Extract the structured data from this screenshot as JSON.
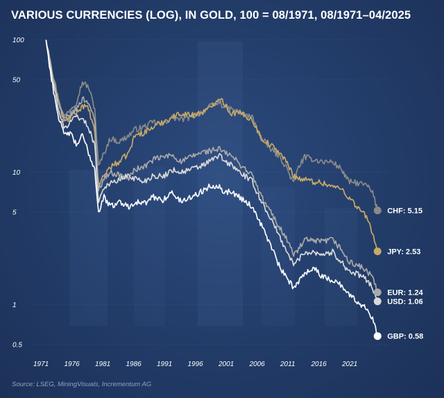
{
  "title": "VARIOUS CURRENCIES (LOG), IN GOLD, 100 = 08/1971, 08/1971–04/2025",
  "source": "Source: LSEG, MiningVisuals, Incrementum AG",
  "chart_data": {
    "type": "line",
    "title": "VARIOUS CURRENCIES (LOG), IN GOLD, 100 = 08/1971, 08/1971–04/2025",
    "y_scale": "log",
    "ylim": [
      0.4,
      110
    ],
    "xlim": [
      1971.0,
      2025.5
    ],
    "y_ticks": [
      100,
      50,
      10,
      5,
      1,
      0.5
    ],
    "y_tick_labels": [
      "100",
      "50",
      "10",
      "5",
      "1",
      "0.5"
    ],
    "x_ticks": [
      1971,
      1976,
      1981,
      1986,
      1991,
      1996,
      2001,
      2006,
      2011,
      2016,
      2021
    ],
    "x_tick_labels": [
      "1971",
      "1976",
      "1981",
      "1986",
      "1991",
      "1996",
      "2001",
      "2006",
      "2011",
      "2016",
      "2021"
    ],
    "legend": "end-of-line labels",
    "series": [
      {
        "name": "CHF",
        "label": "CHF: 5.15",
        "color": "#8a8a8a",
        "final": 5.15,
        "x": [
          1971.6,
          1972.5,
          1973.5,
          1974.5,
          1975.5,
          1976.5,
          1977.5,
          1978.5,
          1979.5,
          1980.1,
          1981.0,
          1982.0,
          1983.5,
          1985.0,
          1986.0,
          1987.5,
          1989.0,
          1990.5,
          1992.0,
          1993.5,
          1995.0,
          1996.5,
          1998.0,
          1999.7,
          2000.5,
          2001.5,
          2003.0,
          2005.0,
          2006.5,
          2008.0,
          2009.5,
          2010.5,
          2011.7,
          2012.5,
          2013.5,
          2015.0,
          2016.5,
          2018.0,
          2019.5,
          2020.6,
          2022.0,
          2023.5,
          2024.5,
          2025.3
        ],
        "values": [
          100,
          62,
          38,
          26,
          30,
          34,
          48,
          44,
          30,
          11,
          14,
          18,
          17,
          19,
          21,
          22,
          24,
          23,
          26,
          25,
          26,
          28,
          31,
          34,
          31,
          30,
          28,
          26,
          18,
          15,
          13,
          11,
          8.2,
          11,
          13,
          12.5,
          12,
          12,
          10.5,
          8.5,
          8.3,
          8.0,
          7.0,
          5.15
        ]
      },
      {
        "name": "JPY",
        "label": "JPY: 2.53",
        "color": "#c9a968",
        "final": 2.53,
        "x": [
          1971.6,
          1972.5,
          1973.5,
          1974.5,
          1975.5,
          1976.5,
          1977.5,
          1978.5,
          1979.5,
          1980.1,
          1981.0,
          1982.0,
          1983.5,
          1985.0,
          1986.0,
          1987.5,
          1989.0,
          1990.5,
          1992.0,
          1993.5,
          1995.0,
          1996.5,
          1998.0,
          1999.7,
          2000.5,
          2001.5,
          2003.0,
          2005.0,
          2006.5,
          2008.0,
          2009.5,
          2010.5,
          2011.7,
          2012.5,
          2013.5,
          2015.0,
          2016.5,
          2018.0,
          2019.5,
          2020.6,
          2022.0,
          2023.5,
          2024.5,
          2025.3
        ],
        "values": [
          100,
          58,
          36,
          24,
          26,
          28,
          32,
          30,
          20,
          8.0,
          9.5,
          11,
          12,
          14,
          19,
          20,
          22,
          24,
          26,
          28,
          27,
          28,
          30,
          37,
          33,
          28,
          28,
          25,
          18,
          16,
          14,
          12,
          9.5,
          9.0,
          8.8,
          8.5,
          8.3,
          7.8,
          7.5,
          6.5,
          5.5,
          4.6,
          3.5,
          2.53
        ]
      },
      {
        "name": "EUR",
        "label": "EUR: 1.24",
        "color": "#a9a9a9",
        "final": 1.24,
        "x": [
          1971.6,
          1972.5,
          1973.5,
          1974.5,
          1975.5,
          1976.5,
          1977.5,
          1978.5,
          1979.5,
          1980.1,
          1981.0,
          1982.0,
          1983.5,
          1985.0,
          1986.0,
          1987.5,
          1989.0,
          1990.5,
          1992.0,
          1993.5,
          1995.0,
          1996.5,
          1998.0,
          1999.7,
          2000.5,
          2001.5,
          2003.0,
          2005.0,
          2006.5,
          2008.0,
          2009.5,
          2010.5,
          2011.7,
          2012.5,
          2013.5,
          2015.0,
          2016.5,
          2018.0,
          2019.5,
          2020.6,
          2022.0,
          2023.5,
          2024.5,
          2025.3
        ],
        "values": [
          100,
          60,
          35,
          25,
          27,
          30,
          36,
          34,
          24,
          7.5,
          9.0,
          10,
          9.5,
          9.0,
          10.5,
          11,
          12.5,
          13,
          13.5,
          12,
          13,
          14,
          14.5,
          15,
          14,
          13.5,
          11.5,
          9.5,
          6.5,
          5.0,
          3.8,
          3.2,
          2.4,
          2.6,
          3.1,
          3.0,
          3.0,
          3.1,
          2.6,
          2.1,
          2.0,
          1.8,
          1.6,
          1.24
        ]
      },
      {
        "name": "USD",
        "label": "USD: 1.06",
        "color": "#d9d9d9",
        "final": 1.06,
        "x": [
          1971.6,
          1972.5,
          1973.5,
          1974.5,
          1975.5,
          1976.5,
          1977.5,
          1978.5,
          1979.5,
          1980.1,
          1981.0,
          1982.0,
          1983.5,
          1985.0,
          1986.0,
          1987.5,
          1989.0,
          1990.5,
          1992.0,
          1993.5,
          1995.0,
          1996.5,
          1998.0,
          1999.7,
          2000.5,
          2001.5,
          2003.0,
          2005.0,
          2006.5,
          2008.0,
          2009.5,
          2010.5,
          2011.7,
          2012.5,
          2013.5,
          2015.0,
          2016.5,
          2018.0,
          2019.5,
          2020.6,
          2022.0,
          2023.5,
          2024.5,
          2025.3
        ],
        "values": [
          100,
          55,
          32,
          21,
          24,
          27,
          25,
          22,
          16,
          6.0,
          7.8,
          8.2,
          8.8,
          9.5,
          9.0,
          8.5,
          9.5,
          9.2,
          10.5,
          10.0,
          10.5,
          11,
          12,
          13.5,
          12,
          11.5,
          10,
          8.5,
          6.0,
          4.5,
          3.2,
          2.6,
          2.0,
          2.2,
          2.5,
          2.5,
          2.4,
          2.5,
          2.1,
          1.8,
          1.7,
          1.55,
          1.35,
          1.06
        ]
      },
      {
        "name": "GBP",
        "label": "GBP: 0.58",
        "color": "#ffffff",
        "final": 0.58,
        "x": [
          1971.6,
          1972.5,
          1973.5,
          1974.5,
          1975.5,
          1976.5,
          1977.5,
          1978.5,
          1979.5,
          1980.1,
          1981.0,
          1982.0,
          1983.5,
          1985.0,
          1986.0,
          1987.5,
          1989.0,
          1990.5,
          1992.0,
          1993.5,
          1995.0,
          1996.5,
          1998.0,
          1999.7,
          2000.5,
          2001.5,
          2003.0,
          2005.0,
          2006.5,
          2008.0,
          2009.5,
          2010.5,
          2011.7,
          2012.5,
          2013.5,
          2015.0,
          2016.5,
          2018.0,
          2019.5,
          2020.6,
          2022.0,
          2023.5,
          2024.5,
          2025.3
        ],
        "values": [
          100,
          50,
          28,
          19,
          20,
          16,
          19,
          14,
          10.5,
          5.0,
          6.5,
          5.5,
          6.0,
          5.5,
          6.0,
          5.8,
          6.5,
          6.2,
          7.0,
          6.0,
          6.5,
          7.0,
          7.8,
          8.0,
          7.0,
          7.2,
          6.5,
          5.5,
          4.0,
          2.8,
          1.9,
          1.6,
          1.35,
          1.5,
          1.75,
          1.9,
          1.6,
          1.55,
          1.4,
          1.2,
          1.05,
          0.95,
          0.8,
          0.58
        ]
      }
    ]
  }
}
